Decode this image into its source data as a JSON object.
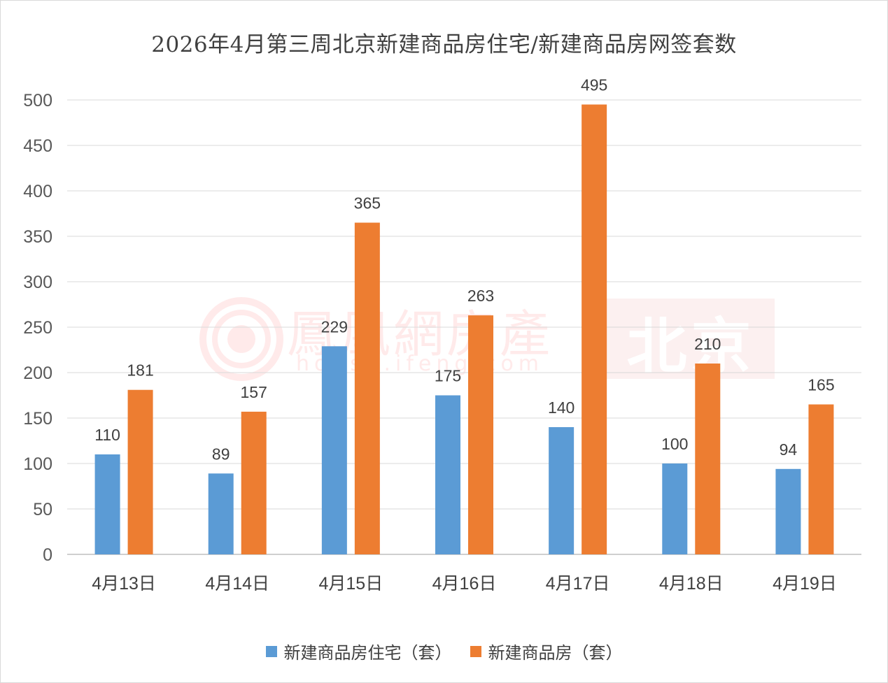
{
  "chart_data": {
    "type": "bar",
    "title": "2026年4月第三周北京新建商品房住宅/新建商品房网签套数",
    "categories": [
      "4月13日",
      "4月14日",
      "4月15日",
      "4月16日",
      "4月17日",
      "4月18日",
      "4月19日"
    ],
    "series": [
      {
        "name": "新建商品房住宅（套）",
        "color": "#5b9bd5",
        "values": [
          110,
          89,
          229,
          175,
          140,
          100,
          94
        ]
      },
      {
        "name": "新建商品房（套）",
        "color": "#ed7d31",
        "values": [
          181,
          157,
          365,
          263,
          495,
          210,
          165
        ]
      }
    ],
    "yticks": [
      0,
      50,
      100,
      150,
      200,
      250,
      300,
      350,
      400,
      450,
      500
    ],
    "ylim": [
      0,
      500
    ],
    "grid": true,
    "legend_position": "bottom"
  },
  "watermark": {
    "chinese": "鳳凰網房產",
    "url": "house.ifeng.com",
    "city": "北京",
    "color": "#f4a6a6"
  }
}
